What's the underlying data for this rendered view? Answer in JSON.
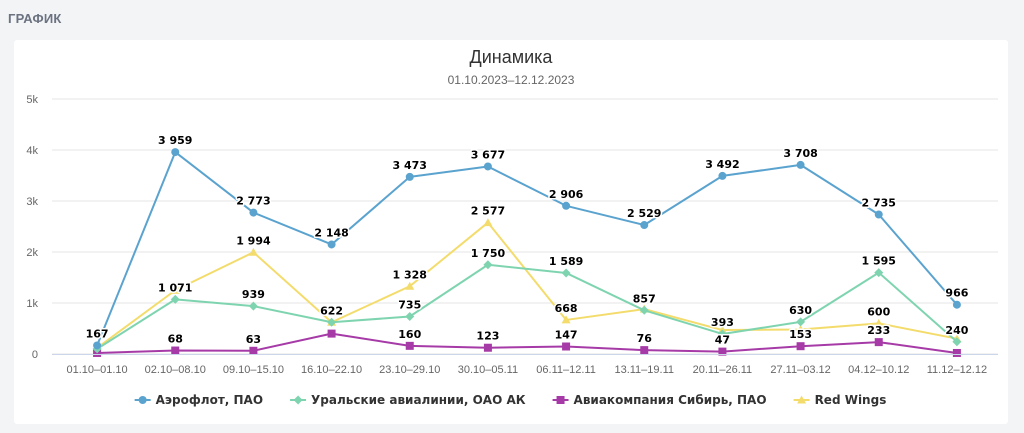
{
  "section": {
    "title": "ГРАФИК"
  },
  "chart_data": {
    "type": "line",
    "title": "Динамика",
    "subtitle": "01.10.2023–12.12.2023",
    "xlabel": "",
    "ylabel": "",
    "ylim": [
      0,
      5000
    ],
    "yticks": [
      {
        "value": 0,
        "label": "0"
      },
      {
        "value": 1000,
        "label": "1k"
      },
      {
        "value": 2000,
        "label": "2k"
      },
      {
        "value": 3000,
        "label": "3k"
      },
      {
        "value": 4000,
        "label": "4k"
      },
      {
        "value": 5000,
        "label": "5k"
      }
    ],
    "grid": true,
    "legend_position": "bottom",
    "categories": [
      "01.10–01.10",
      "02.10–08.10",
      "09.10–15.10",
      "16.10–22.10",
      "23.10–29.10",
      "30.10–05.11",
      "06.11–12.11",
      "13.11–19.11",
      "20.11–26.11",
      "27.11–03.12",
      "04.12–10.12",
      "11.12–12.12"
    ],
    "series": [
      {
        "name": "Аэрофлот, ПАО",
        "color": "#5ba3cf",
        "marker": "circle",
        "values": [
          167,
          3959,
          2773,
          2148,
          3473,
          3677,
          2906,
          2529,
          3492,
          3708,
          2735,
          966
        ],
        "labels": [
          "167",
          "3 959",
          "2 773",
          "2 148",
          "3 473",
          "3 677",
          "2 906",
          "2 529",
          "3 492",
          "3 708",
          "2 735",
          "966"
        ],
        "label_shown": [
          true,
          true,
          true,
          true,
          true,
          true,
          true,
          true,
          true,
          true,
          true,
          true
        ]
      },
      {
        "name": "Уральские авиалинии, ОАО АК",
        "color": "#7fd4b0",
        "marker": "diamond",
        "values": [
          100,
          1071,
          939,
          622,
          735,
          1750,
          1589,
          857,
          393,
          630,
          1595,
          240
        ],
        "labels": [
          "",
          "1 071",
          "939",
          "622",
          "735",
          "1 750",
          "1 589",
          "857",
          "393",
          "630",
          "1 595",
          "240"
        ],
        "label_shown": [
          false,
          true,
          true,
          true,
          true,
          true,
          true,
          true,
          true,
          true,
          true,
          true
        ]
      },
      {
        "name": "Авиакомпания Сибирь, ПАО",
        "color": "#a63ba7",
        "marker": "square",
        "values": [
          20,
          68,
          63,
          400,
          160,
          123,
          147,
          76,
          47,
          153,
          233,
          20
        ],
        "labels": [
          "",
          "68",
          "63",
          "",
          "160",
          "123",
          "147",
          "76",
          "47",
          "153",
          "233",
          ""
        ],
        "label_shown": [
          false,
          true,
          true,
          false,
          true,
          true,
          true,
          true,
          true,
          true,
          true,
          false
        ]
      },
      {
        "name": "Red Wings",
        "color": "#f3dc6c",
        "marker": "triangle",
        "values": [
          120,
          1250,
          1994,
          622,
          1328,
          2577,
          668,
          880,
          470,
          480,
          600,
          300
        ],
        "labels": [
          "",
          "",
          "1 994",
          "",
          "1 328",
          "2 577",
          "668",
          "",
          "",
          "",
          "600",
          ""
        ],
        "label_shown": [
          false,
          false,
          true,
          false,
          true,
          true,
          true,
          false,
          false,
          false,
          true,
          false
        ]
      }
    ]
  }
}
